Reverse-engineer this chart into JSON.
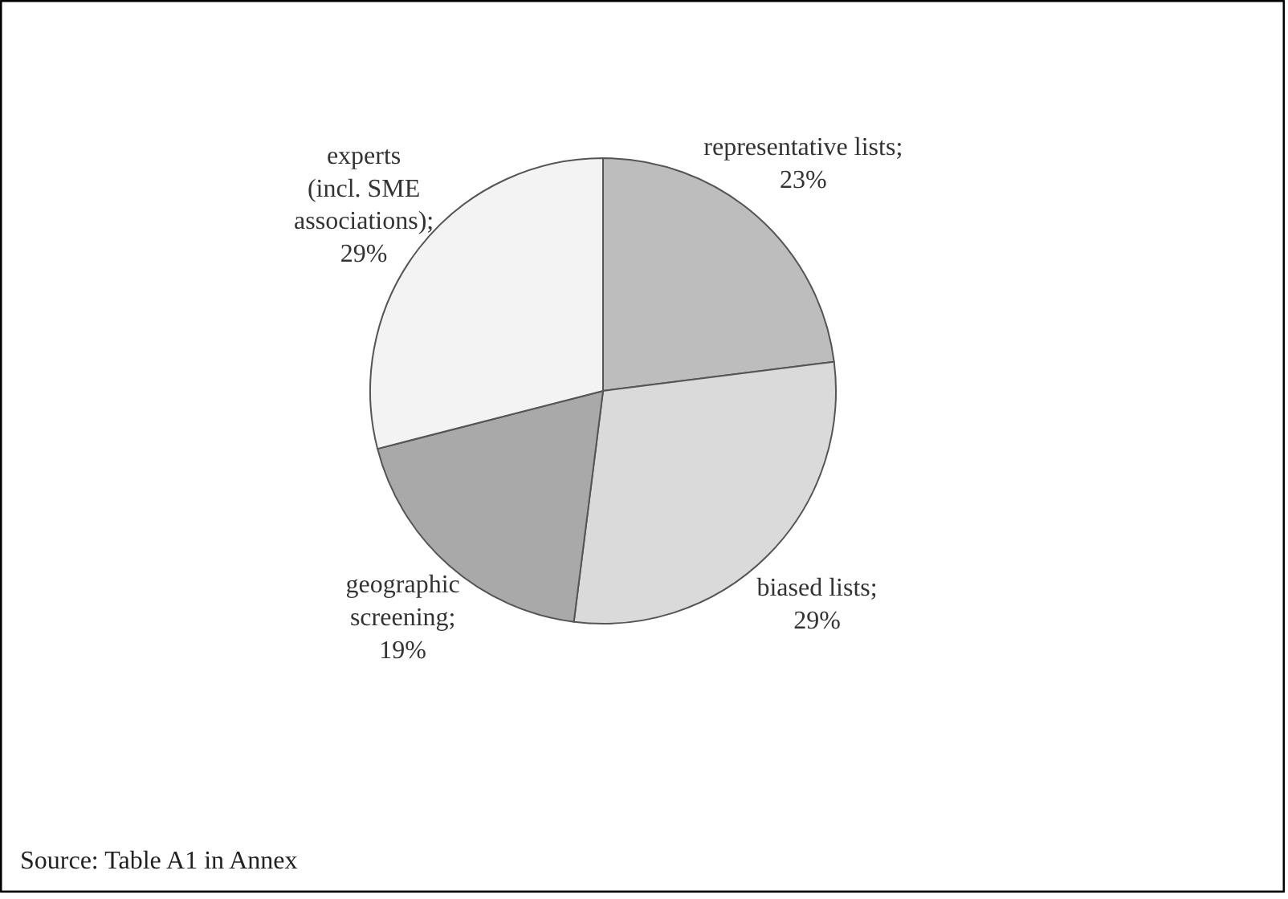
{
  "chart_data": {
    "type": "pie",
    "categories": [
      "representative lists;\n23%",
      "biased lists;\n29%",
      "geographic\nscreening;\n19%",
      "experts\n(incl. SME\nassociations);\n29%"
    ],
    "values": [
      23,
      29,
      19,
      29
    ],
    "colors": [
      "#bdbdbd",
      "#dadada",
      "#a9a9a9",
      "#f3f3f3"
    ],
    "annotations": [
      "Source:   Table A1 in Annex"
    ]
  }
}
